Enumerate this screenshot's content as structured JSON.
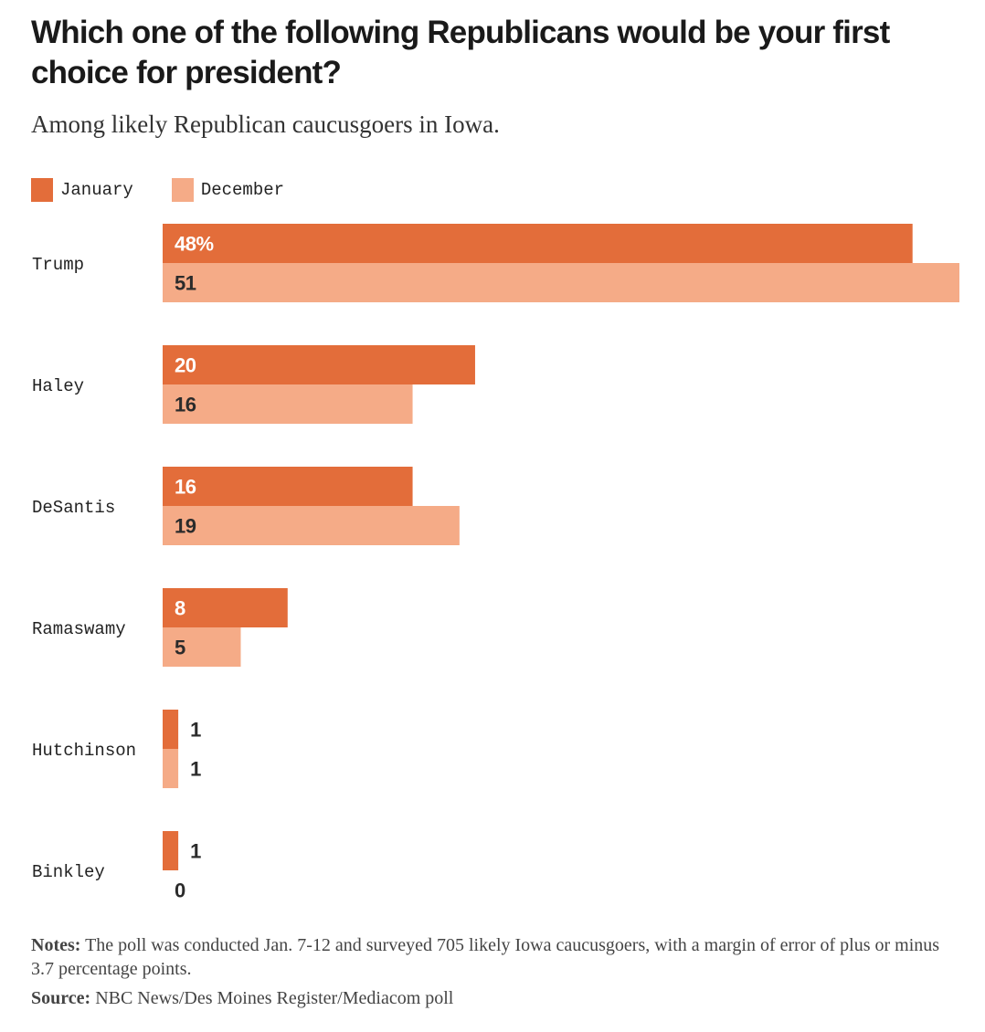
{
  "chart_data": {
    "type": "bar",
    "orientation": "horizontal",
    "title": "Which one of the following Republicans would be your first choice for president?",
    "subtitle": "Among likely Republican caucusgoers in Iowa.",
    "categories": [
      "Trump",
      "Haley",
      "DeSantis",
      "Ramaswamy",
      "Hutchinson",
      "Binkley"
    ],
    "series": [
      {
        "name": "January",
        "color": "#e36d3a",
        "values": [
          48,
          20,
          16,
          8,
          1,
          1
        ],
        "labels": [
          "48%",
          "20",
          "16",
          "8",
          "1",
          "1"
        ]
      },
      {
        "name": "December",
        "color": "#f5ab87",
        "values": [
          51,
          16,
          19,
          5,
          1,
          0
        ],
        "labels": [
          "51",
          "16",
          "19",
          "5",
          "1",
          "0"
        ]
      }
    ],
    "xlim": [
      0,
      51
    ],
    "grid": false,
    "legend_position": "top-left"
  },
  "notes": {
    "label": "Notes:",
    "text": "The poll was conducted Jan. 7-12 and surveyed 705 likely Iowa caucusgoers, with a margin of error of plus or minus 3.7 percentage points."
  },
  "source": {
    "label": "Source:",
    "text": "NBC News/Des Moines Register/Mediacom poll"
  }
}
